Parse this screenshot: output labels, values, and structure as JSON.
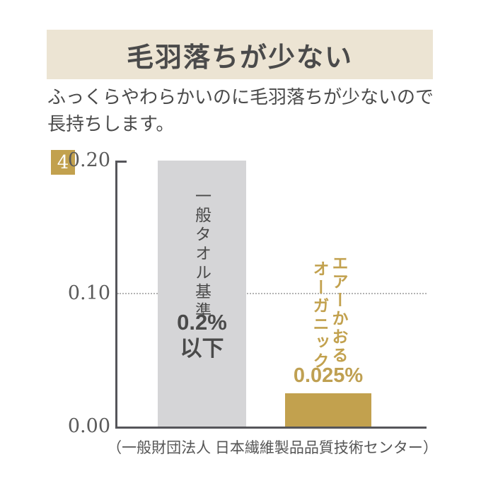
{
  "header": {
    "title": "毛羽落ちが少ない"
  },
  "subtitle": {
    "line1": "ふっくらやわらかいのに毛羽落ちが少ないので",
    "line2": "長持ちします。"
  },
  "step_badge": {
    "number": "4"
  },
  "chart_data": {
    "type": "bar",
    "categories": [
      "一般タオル基準",
      "エアーかおるオーガニック"
    ],
    "values": [
      0.2,
      0.025
    ],
    "value_labels": [
      "0.2%以下",
      "0.025%"
    ],
    "ylim": [
      0,
      0.2
    ],
    "yticks": [
      {
        "value": 0.2,
        "label": "0.20"
      },
      {
        "value": 0.1,
        "label": "0.10"
      },
      {
        "value": 0.0,
        "label": "0.00"
      }
    ],
    "reference_line": 0.1,
    "legend": "none",
    "grid": "single dotted horizontal line at 0.10",
    "bar_colors": [
      "#d5d5d7",
      "#c2a14e"
    ],
    "bars": [
      {
        "label_vertical": "一般タオル基準",
        "value_line1": "0.2%",
        "value_line2": "以下"
      },
      {
        "label_col1": "エアーかおる",
        "label_col2": "オーガニック",
        "value_label": "0.025%"
      }
    ]
  },
  "footnote": {
    "text": "（一般財団法人 日本繊維製品品質技術センター）"
  },
  "colors": {
    "accent_gold": "#c2a14e",
    "bar_gray": "#d5d5d7",
    "banner_bg": "#ece4d3",
    "text_dark": "#4a4a4a",
    "axis_gray": "#55555a"
  }
}
